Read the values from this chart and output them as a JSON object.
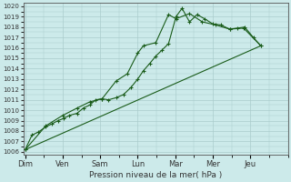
{
  "background_color": "#cceaea",
  "grid_color": "#aacccc",
  "line_color": "#1a5c1a",
  "xlabel": "Pression niveau de la mer( hPa )",
  "ylim_min": 1006,
  "ylim_max": 1020,
  "yticks": [
    1006,
    1007,
    1008,
    1009,
    1010,
    1011,
    1012,
    1013,
    1014,
    1015,
    1016,
    1017,
    1018,
    1019,
    1020
  ],
  "xtick_labels": [
    "Dim",
    "Ven",
    "Sam",
    "Lun",
    "Mar",
    "Mer",
    "Jeu"
  ],
  "xtick_positions": [
    0,
    1,
    2,
    3,
    4,
    5,
    6
  ],
  "xlim_min": 0,
  "xlim_max": 7,
  "series1_x": [
    0.0,
    0.18,
    0.35,
    0.55,
    0.72,
    0.88,
    1.02,
    1.18,
    1.38,
    1.55,
    1.72,
    1.88,
    2.05,
    2.22,
    2.42,
    2.62,
    2.82,
    3.0,
    3.15,
    3.32,
    3.48,
    3.65,
    3.82,
    4.02,
    4.18,
    4.38,
    4.58,
    4.78,
    5.0,
    5.22,
    5.45,
    5.65,
    5.85,
    6.08,
    6.28
  ],
  "series1_y": [
    1006.2,
    1007.6,
    1007.9,
    1008.4,
    1008.7,
    1009.0,
    1009.2,
    1009.5,
    1009.7,
    1010.2,
    1010.5,
    1011.0,
    1011.1,
    1011.0,
    1011.2,
    1011.5,
    1012.2,
    1013.0,
    1013.8,
    1014.5,
    1015.2,
    1015.8,
    1016.4,
    1019.0,
    1019.8,
    1018.5,
    1019.2,
    1018.8,
    1018.3,
    1018.2,
    1017.8,
    1017.9,
    1018.0,
    1017.0,
    1016.2
  ],
  "series2_x": [
    0.0,
    0.55,
    1.0,
    1.38,
    1.72,
    2.05,
    2.42,
    2.72,
    3.0,
    3.15,
    3.48,
    3.82,
    4.02,
    4.38,
    4.72,
    5.08,
    5.45,
    5.82,
    6.28
  ],
  "series2_y": [
    1006.2,
    1008.5,
    1009.5,
    1010.2,
    1010.8,
    1011.1,
    1012.8,
    1013.5,
    1015.5,
    1016.2,
    1016.5,
    1019.2,
    1018.8,
    1019.3,
    1018.5,
    1018.2,
    1017.8,
    1017.9,
    1016.2
  ],
  "series3_x": [
    0.0,
    6.28
  ],
  "series3_y": [
    1006.2,
    1016.2
  ]
}
